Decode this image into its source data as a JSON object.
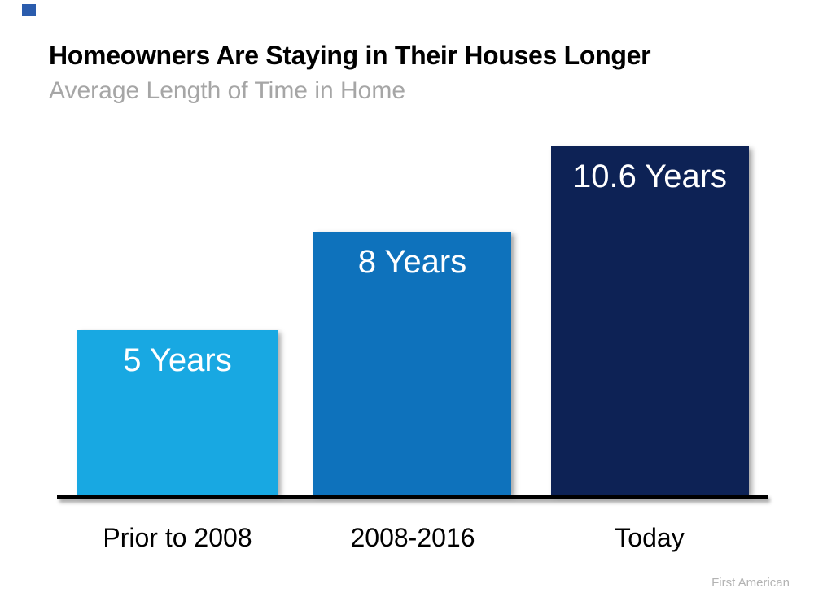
{
  "slide": {
    "title": "Homeowners Are Staying in Their Houses Longer",
    "subtitle": "Average Length of Time in Home",
    "source": "First American"
  },
  "colors": {
    "title_text": "#000000",
    "subtitle_text": "#A6A6A6",
    "axis_line": "#000000",
    "source_text": "#B3B3B3",
    "corner_square": "#2B5CAD",
    "bar_value_text": "#FFFFFF"
  },
  "chart_data": {
    "type": "bar",
    "title": "Homeowners Are Staying in Their Houses Longer",
    "subtitle": "Average Length of Time in Home",
    "categories": [
      "Prior to 2008",
      "2008-2016",
      "Today"
    ],
    "values": [
      5,
      8,
      10.6
    ],
    "unit": "Years",
    "bar_labels": [
      "5 Years",
      "8 Years",
      "10.6 Years"
    ],
    "bar_colors": [
      "#18A8E2",
      "#0E72BC",
      "#0D2255"
    ],
    "ylim": [
      0,
      10.6
    ],
    "grid": false,
    "y_axis_visible": false,
    "x_axis_visible": true,
    "value_labels_position": "inside-top",
    "legend": false,
    "source": "First American"
  }
}
